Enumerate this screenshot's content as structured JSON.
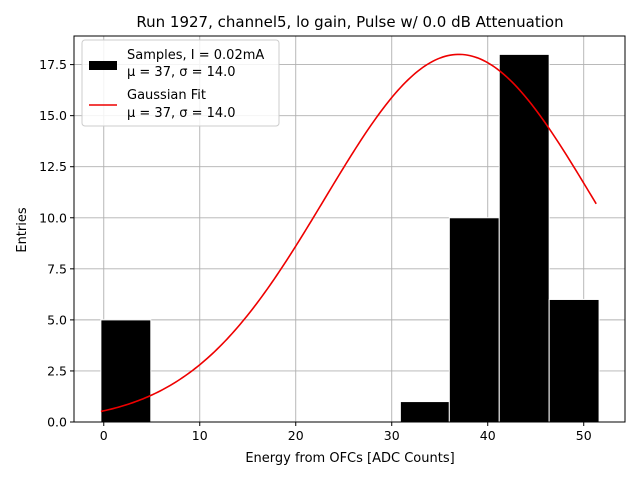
{
  "chart_data": {
    "type": "bar",
    "title": "Run 1927, channel5, lo gain, Pulse w/ 0.0 dB Attenuation",
    "xlabel": "Energy from OFCs [ADC Counts]",
    "ylabel": "Entries",
    "xlim": [
      -3.1,
      54.3
    ],
    "ylim": [
      0,
      18.9
    ],
    "xticks": [
      0,
      10,
      20,
      30,
      40,
      50
    ],
    "xtick_labels": [
      "0",
      "10",
      "20",
      "30",
      "40",
      "50"
    ],
    "yticks": [
      0,
      2.5,
      5,
      7.5,
      10,
      12.5,
      15,
      17.5
    ],
    "ytick_labels": [
      "0.0",
      "2.5",
      "5.0",
      "7.5",
      "10.0",
      "12.5",
      "15.0",
      "17.5"
    ],
    "grid": true,
    "legend_position": "upper-left",
    "histogram": {
      "name": "Samples, I = 0.02mA",
      "stats": "μ = 37, σ = 14.0",
      "color": "#000000",
      "bins": [
        {
          "start": -0.3,
          "end": 4.9,
          "value": 5
        },
        {
          "start": 4.9,
          "end": 10.1,
          "value": 0
        },
        {
          "start": 10.1,
          "end": 15.3,
          "value": 0
        },
        {
          "start": 15.3,
          "end": 20.5,
          "value": 0
        },
        {
          "start": 20.5,
          "end": 25.7,
          "value": 0
        },
        {
          "start": 25.7,
          "end": 30.9,
          "value": 0
        },
        {
          "start": 30.9,
          "end": 36.0,
          "value": 1
        },
        {
          "start": 36.0,
          "end": 41.2,
          "value": 10
        },
        {
          "start": 41.2,
          "end": 46.4,
          "value": 18
        },
        {
          "start": 46.4,
          "end": 51.6,
          "value": 6
        }
      ]
    },
    "fit": {
      "name": "Gaussian Fit",
      "stats": "μ = 37, σ = 14.0",
      "color": "#ee0000",
      "amplitude": 18.0,
      "mu": 37,
      "sigma": 14.0,
      "x_range": [
        -0.3,
        51.3
      ]
    }
  }
}
